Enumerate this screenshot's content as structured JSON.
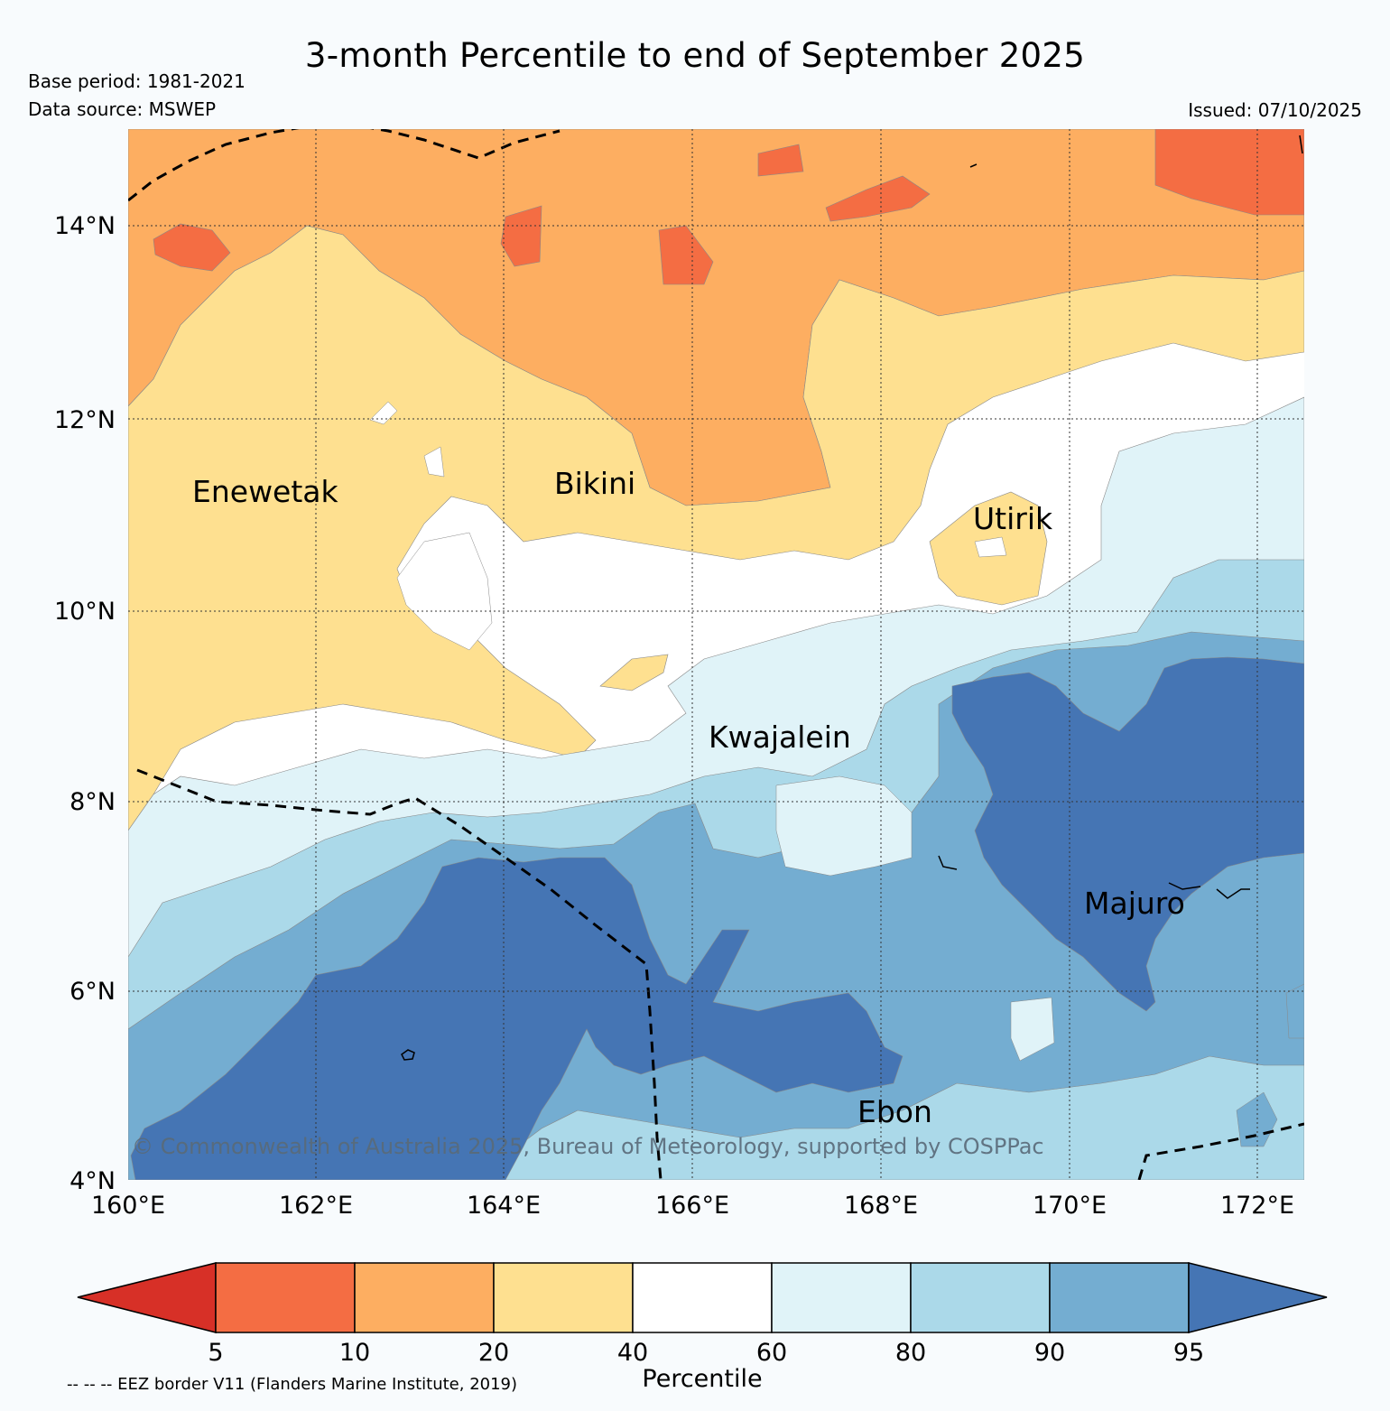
{
  "title": "3-month Percentile to end of September 2025",
  "base_period": "Base period: 1981-2021",
  "data_source": "Data source: MSWEP",
  "issued": "Issued: 07/10/2025",
  "copyright": "© Commonwealth of Australia 2025, Bureau of Meteorology, supported by COSPPac",
  "map": {
    "lon_range": [
      160,
      172.5
    ],
    "lat_range": [
      4,
      15
    ],
    "lon_ticks": [
      "160°E",
      "162°E",
      "164°E",
      "166°E",
      "168°E",
      "170°E",
      "172°E"
    ],
    "lat_ticks": [
      "4°N",
      "6°N",
      "8°N",
      "10°N",
      "12°N",
      "14°N"
    ],
    "places": [
      {
        "name": "Enewetak",
        "lon": 162.3,
        "lat": 11.3
      },
      {
        "name": "Bikini",
        "lon": 165.6,
        "lat": 11.4
      },
      {
        "name": "Utirik",
        "lon": 169.8,
        "lat": 11.0
      },
      {
        "name": "Kwajalein",
        "lon": 167.4,
        "lat": 8.7
      },
      {
        "name": "Majuro",
        "lon": 171.3,
        "lat": 7.1
      },
      {
        "name": "Ebon",
        "lon": 168.6,
        "lat": 4.7
      }
    ]
  },
  "colorbar": {
    "title": "Percentile",
    "ticks": [
      "5",
      "10",
      "20",
      "40",
      "60",
      "80",
      "90",
      "95"
    ],
    "colors": {
      "below_5": "#d73027",
      "5_10": "#f46d43",
      "10_20": "#fdae61",
      "20_40": "#fee090",
      "40_60": "#ffffff",
      "60_80": "#e0f3f8",
      "80_90": "#abd9e9",
      "90_95": "#74add1",
      "above_95": "#4575b4"
    }
  },
  "eez_note": "-- -- -- EEZ border V11 (Flanders Marine Institute, 2019)"
}
